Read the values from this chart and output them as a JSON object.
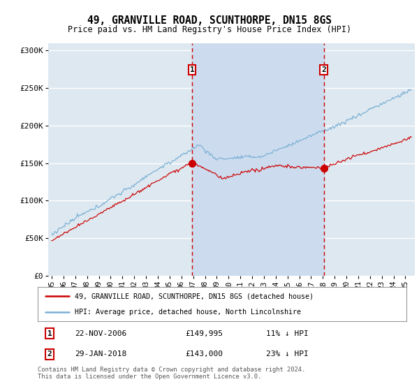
{
  "title": "49, GRANVILLE ROAD, SCUNTHORPE, DN15 8GS",
  "subtitle": "Price paid vs. HM Land Registry's House Price Index (HPI)",
  "ylabel_ticks": [
    "£0",
    "£50K",
    "£100K",
    "£150K",
    "£200K",
    "£250K",
    "£300K"
  ],
  "ytick_values": [
    0,
    50000,
    100000,
    150000,
    200000,
    250000,
    300000
  ],
  "ylim": [
    0,
    310000
  ],
  "xlim_start": 1994.7,
  "xlim_end": 2025.8,
  "background_color": "#ffffff",
  "plot_bg_color": "#dde8f0",
  "shade_color": "#ccdcee",
  "grid_color": "#ffffff",
  "red_line_color": "#cc0000",
  "blue_line_color": "#7aafd4",
  "sale1_x": 2006.9,
  "sale1_y": 149995,
  "sale1_label": "1",
  "sale1_date": "22-NOV-2006",
  "sale1_price": "£149,995",
  "sale1_hpi": "11% ↓ HPI",
  "sale2_x": 2018.08,
  "sale2_y": 143000,
  "sale2_label": "2",
  "sale2_date": "29-JAN-2018",
  "sale2_price": "£143,000",
  "sale2_hpi": "23% ↓ HPI",
  "legend_line1": "49, GRANVILLE ROAD, SCUNTHORPE, DN15 8GS (detached house)",
  "legend_line2": "HPI: Average price, detached house, North Lincolnshire",
  "footer": "Contains HM Land Registry data © Crown copyright and database right 2024.\nThis data is licensed under the Open Government Licence v3.0."
}
